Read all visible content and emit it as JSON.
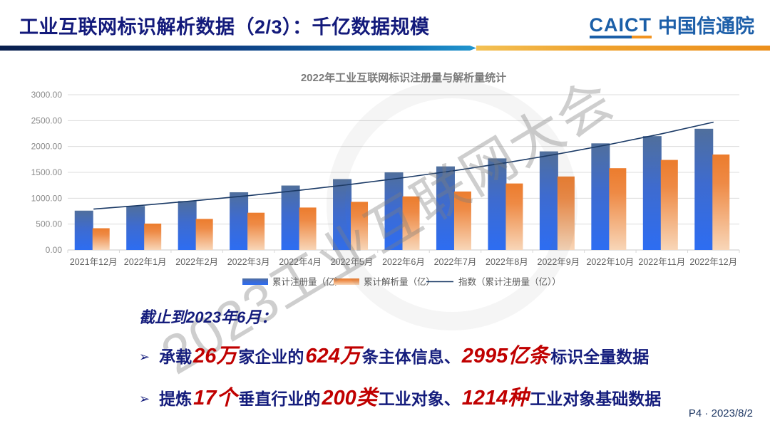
{
  "slide": {
    "title": "工业互联网标识解析数据（2/3）：千亿数据规模",
    "footer": "P4 · 2023/8/2",
    "watermark": "2023工业互联网大会",
    "logo": {
      "abbr": "CAICT",
      "name": "中国信通院"
    }
  },
  "colors": {
    "title_navy": "#131a7b",
    "note_navy": "#141c7c",
    "note_red": "#c00000",
    "bar_blue": "#2d6df2",
    "bar_orange": "#ed7d31",
    "trend_line": "#1b3a66",
    "logo_blue": "#1b5fa8",
    "logo_orange": "#f29421"
  },
  "chart_data": {
    "type": "bar",
    "title": "2022年工业互联网标识注册量与解析量统计",
    "categories": [
      "2021年12月",
      "2022年1月",
      "2022年2月",
      "2022年3月",
      "2022年4月",
      "2022年5月",
      "2022年6月",
      "2022年7月",
      "2022年8月",
      "2022年9月",
      "2022年10月",
      "2022年11月",
      "2022年12月"
    ],
    "series": [
      {
        "name": "累计注册量（亿）",
        "type": "bar",
        "color": "#2d6df2",
        "values": [
          760,
          850,
          945,
          1115,
          1245,
          1370,
          1500,
          1615,
          1770,
          1905,
          2060,
          2200,
          2342
        ]
      },
      {
        "name": "累计解析量（亿）",
        "type": "bar",
        "color": "#ed7d31",
        "values": [
          420,
          510,
          600,
          720,
          820,
          930,
          1035,
          1130,
          1285,
          1420,
          1580,
          1740,
          1845
        ]
      },
      {
        "name": "指数（累计注册量（亿））",
        "type": "line",
        "color": "#1b3a66",
        "values": [
          790,
          869,
          955,
          1050,
          1155,
          1270,
          1397,
          1536,
          1689,
          1857,
          2042,
          2246,
          2470
        ]
      }
    ],
    "ylabel": "",
    "xlabel": "",
    "ylim": [
      0,
      3000
    ],
    "ytick_step": 500,
    "ytick_decimals": 2,
    "grid": true,
    "legend_position": "bottom"
  },
  "notes": {
    "heading": "截止到2023年6月：",
    "bullets": [
      {
        "marker": "➢",
        "segments": [
          {
            "t": "承载",
            "style": "navy"
          },
          {
            "t": "26万",
            "style": "red"
          },
          {
            "t": "家企业的",
            "style": "navy"
          },
          {
            "t": "624万",
            "style": "red"
          },
          {
            "t": "条主体信息、",
            "style": "navy"
          },
          {
            "t": "2995亿条",
            "style": "red"
          },
          {
            "t": "标识全量数据",
            "style": "navy"
          }
        ]
      },
      {
        "marker": "➢",
        "segments": [
          {
            "t": "提炼",
            "style": "navy"
          },
          {
            "t": "17个",
            "style": "red"
          },
          {
            "t": "垂直行业的",
            "style": "navy"
          },
          {
            "t": "200类",
            "style": "red"
          },
          {
            "t": "工业对象、",
            "style": "navy"
          },
          {
            "t": "1214种",
            "style": "red"
          },
          {
            "t": "工业对象基础数据",
            "style": "navy"
          }
        ]
      }
    ]
  }
}
